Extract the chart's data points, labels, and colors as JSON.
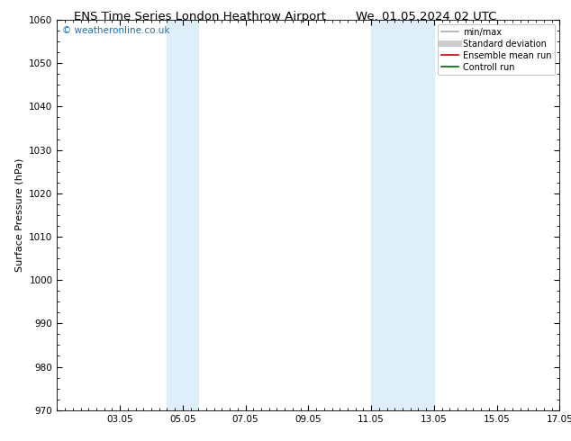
{
  "title_left": "ENS Time Series London Heathrow Airport",
  "title_right": "We. 01.05.2024 02 UTC",
  "ylabel": "Surface Pressure (hPa)",
  "ylim": [
    970,
    1060
  ],
  "yticks": [
    970,
    980,
    990,
    1000,
    1010,
    1020,
    1030,
    1040,
    1050,
    1060
  ],
  "xlim": [
    0,
    16
  ],
  "xtick_labels": [
    "03.05",
    "05.05",
    "07.05",
    "09.05",
    "11.05",
    "13.05",
    "15.05",
    "17.05"
  ],
  "xtick_positions": [
    2,
    4,
    6,
    8,
    10,
    12,
    14,
    16
  ],
  "shaded_bands": [
    {
      "x_start": 3.5,
      "x_end": 4.5,
      "color": "#ddeef8"
    },
    {
      "x_start": 10.0,
      "x_end": 12.0,
      "color": "#ddeef8"
    }
  ],
  "watermark": "© weatheronline.co.uk",
  "watermark_color": "#1a6bbf",
  "legend_items": [
    {
      "label": "min/max",
      "color": "#aaaaaa",
      "lw": 1.2,
      "style": "solid"
    },
    {
      "label": "Standard deviation",
      "color": "#cccccc",
      "lw": 5,
      "style": "solid"
    },
    {
      "label": "Ensemble mean run",
      "color": "#cc0000",
      "lw": 1.2,
      "style": "solid"
    },
    {
      "label": "Controll run",
      "color": "#006600",
      "lw": 1.2,
      "style": "solid"
    }
  ],
  "background_color": "#ffffff",
  "title_fontsize": 9.5,
  "axis_label_fontsize": 8,
  "tick_fontsize": 7.5,
  "watermark_fontsize": 7.5,
  "legend_fontsize": 7
}
